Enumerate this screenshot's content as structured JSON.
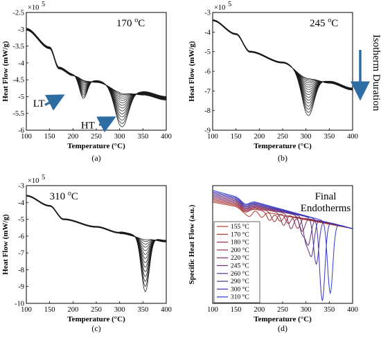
{
  "figure": {
    "colors": {
      "curve": "#1a1a1a",
      "arrow": "#2e6da4",
      "frame": "#000000"
    }
  },
  "chart_data": [
    {
      "id": "a",
      "type": "line",
      "caption": "(a)",
      "annotation": "170 oC",
      "annotation_main": "170 ",
      "annotation_sup": "o",
      "annotation_unit": "C",
      "xlabel": "Temperature (°C)",
      "ylabel": "Heat Flow (mW/g)",
      "exponent_label": "×10",
      "exponent_power": "5",
      "xlim": [
        100,
        400
      ],
      "ylim": [
        -6,
        -2.5
      ],
      "xticks": [
        "100",
        "150",
        "200",
        "250",
        "300",
        "350",
        "400"
      ],
      "yticks": [
        "-2.5",
        "-3",
        "-3.5",
        "-4",
        "-4.5",
        "-5",
        "-5.5",
        "-6"
      ],
      "labels": [
        "LT",
        "HT"
      ],
      "baseline_points": [
        [
          100,
          -3.0
        ],
        [
          150,
          -3.55
        ],
        [
          170,
          -4.15
        ],
        [
          200,
          -4.35
        ],
        [
          250,
          -4.55
        ],
        [
          300,
          -4.75
        ],
        [
          350,
          -4.9
        ],
        [
          400,
          -5.05
        ]
      ],
      "peaks": [
        {
          "name": "LT",
          "center": 222,
          "depth_range": [
            0.05,
            0.65
          ],
          "width": 12
        },
        {
          "name": "HT",
          "center": 305,
          "depth_range": [
            0.1,
            1.2
          ],
          "width": 20
        }
      ],
      "curve_count": 14
    },
    {
      "id": "b",
      "type": "line",
      "caption": "(b)",
      "annotation": "245 oC",
      "annotation_main": "245 ",
      "annotation_sup": "o",
      "annotation_unit": "C",
      "side_text": "Isotherm Duration",
      "xlabel": "Temperature (°C)",
      "ylabel": "Heat Flow (mW/g)",
      "exponent_label": "×10",
      "exponent_power": "5",
      "xlim": [
        100,
        400
      ],
      "ylim": [
        -9,
        -3
      ],
      "xticks": [
        "100",
        "150",
        "200",
        "250",
        "300",
        "350",
        "400"
      ],
      "yticks": [
        "-3",
        "-4",
        "-5",
        "-6",
        "-7",
        "-8",
        "-9"
      ],
      "baseline_points": [
        [
          100,
          -3.4
        ],
        [
          150,
          -4.1
        ],
        [
          180,
          -5.0
        ],
        [
          250,
          -5.55
        ],
        [
          300,
          -6.2
        ],
        [
          350,
          -6.55
        ],
        [
          400,
          -6.9
        ]
      ],
      "peaks": [
        {
          "name": "main",
          "center": 305,
          "depth_range": [
            0.1,
            2.1
          ],
          "width": 18
        }
      ],
      "curve_count": 16
    },
    {
      "id": "c",
      "type": "line",
      "caption": "(c)",
      "annotation": "310 oC",
      "annotation_main": "310 ",
      "annotation_sup": "o",
      "annotation_unit": "C",
      "xlabel": "Temperature (°C)",
      "ylabel": "Heat Flow (mW/g)",
      "exponent_label": "×10",
      "exponent_power": "5",
      "xlim": [
        100,
        400
      ],
      "ylim": [
        -10,
        -3
      ],
      "xticks": [
        "100",
        "150",
        "200",
        "250",
        "300",
        "350",
        "400"
      ],
      "yticks": [
        "-3",
        "-4",
        "-5",
        "-6",
        "-7",
        "-8",
        "-9",
        "-10"
      ],
      "baseline_points": [
        [
          100,
          -3.6
        ],
        [
          150,
          -4.2
        ],
        [
          180,
          -5.0
        ],
        [
          250,
          -5.45
        ],
        [
          300,
          -5.8
        ],
        [
          350,
          -6.05
        ],
        [
          400,
          -6.3
        ]
      ],
      "peaks": [
        {
          "name": "main",
          "center": 355,
          "depth_range": [
            0.1,
            3.3
          ],
          "width": 12
        }
      ],
      "curve_count": 14
    },
    {
      "id": "d",
      "type": "line",
      "caption": "(d)",
      "annotation_lines": [
        "Final",
        "Endotherms"
      ],
      "xlabel": "Temperature (°C)",
      "ylabel": "Specific Heat Flow (a.u.)",
      "xlim": [
        100,
        400
      ],
      "xticks": [
        "100",
        "150",
        "200",
        "250",
        "300",
        "350",
        "400"
      ],
      "series": [
        {
          "name": "155 °C",
          "color": "#b23a2a",
          "peaks": [
            {
              "center": 180,
              "depth": 0.04
            },
            {
              "center": 205,
              "depth": 0.05
            }
          ]
        },
        {
          "name": "170 °C",
          "color": "#a8322e",
          "peaks": [
            {
              "center": 222,
              "depth": 0.07
            },
            {
              "center": 245,
              "depth": 0.06
            }
          ]
        },
        {
          "name": "180 °C",
          "color": "#9e2f3e",
          "peaks": [
            {
              "center": 232,
              "depth": 0.08
            },
            {
              "center": 262,
              "depth": 0.07
            }
          ]
        },
        {
          "name": "200 °C",
          "color": "#8f2f52",
          "peaks": [
            {
              "center": 252,
              "depth": 0.1
            },
            {
              "center": 282,
              "depth": 0.1
            }
          ]
        },
        {
          "name": "220 °C",
          "color": "#7e2f63",
          "peaks": [
            {
              "center": 268,
              "depth": 0.12
            },
            {
              "center": 292,
              "depth": 0.12
            }
          ]
        },
        {
          "name": "245 °C",
          "color": "#6c2f75",
          "peaks": [
            {
              "center": 292,
              "depth": 0.14
            },
            {
              "center": 305,
              "depth": 0.22
            }
          ]
        },
        {
          "name": "260 °C",
          "color": "#5a2f88",
          "peaks": [
            {
              "center": 300,
              "depth": 0.2
            },
            {
              "center": 312,
              "depth": 0.3
            }
          ]
        },
        {
          "name": "290 °C",
          "color": "#482f9b",
          "peaks": [
            {
              "center": 322,
              "depth": 0.38
            }
          ]
        },
        {
          "name": "300 °C",
          "color": "#3a30b4",
          "peaks": [
            {
              "center": 335,
              "depth": 0.68
            }
          ]
        },
        {
          "name": "310 °C",
          "color": "#2a3bd8",
          "peaks": [
            {
              "center": 352,
              "depth": 0.6
            }
          ]
        }
      ]
    }
  ]
}
